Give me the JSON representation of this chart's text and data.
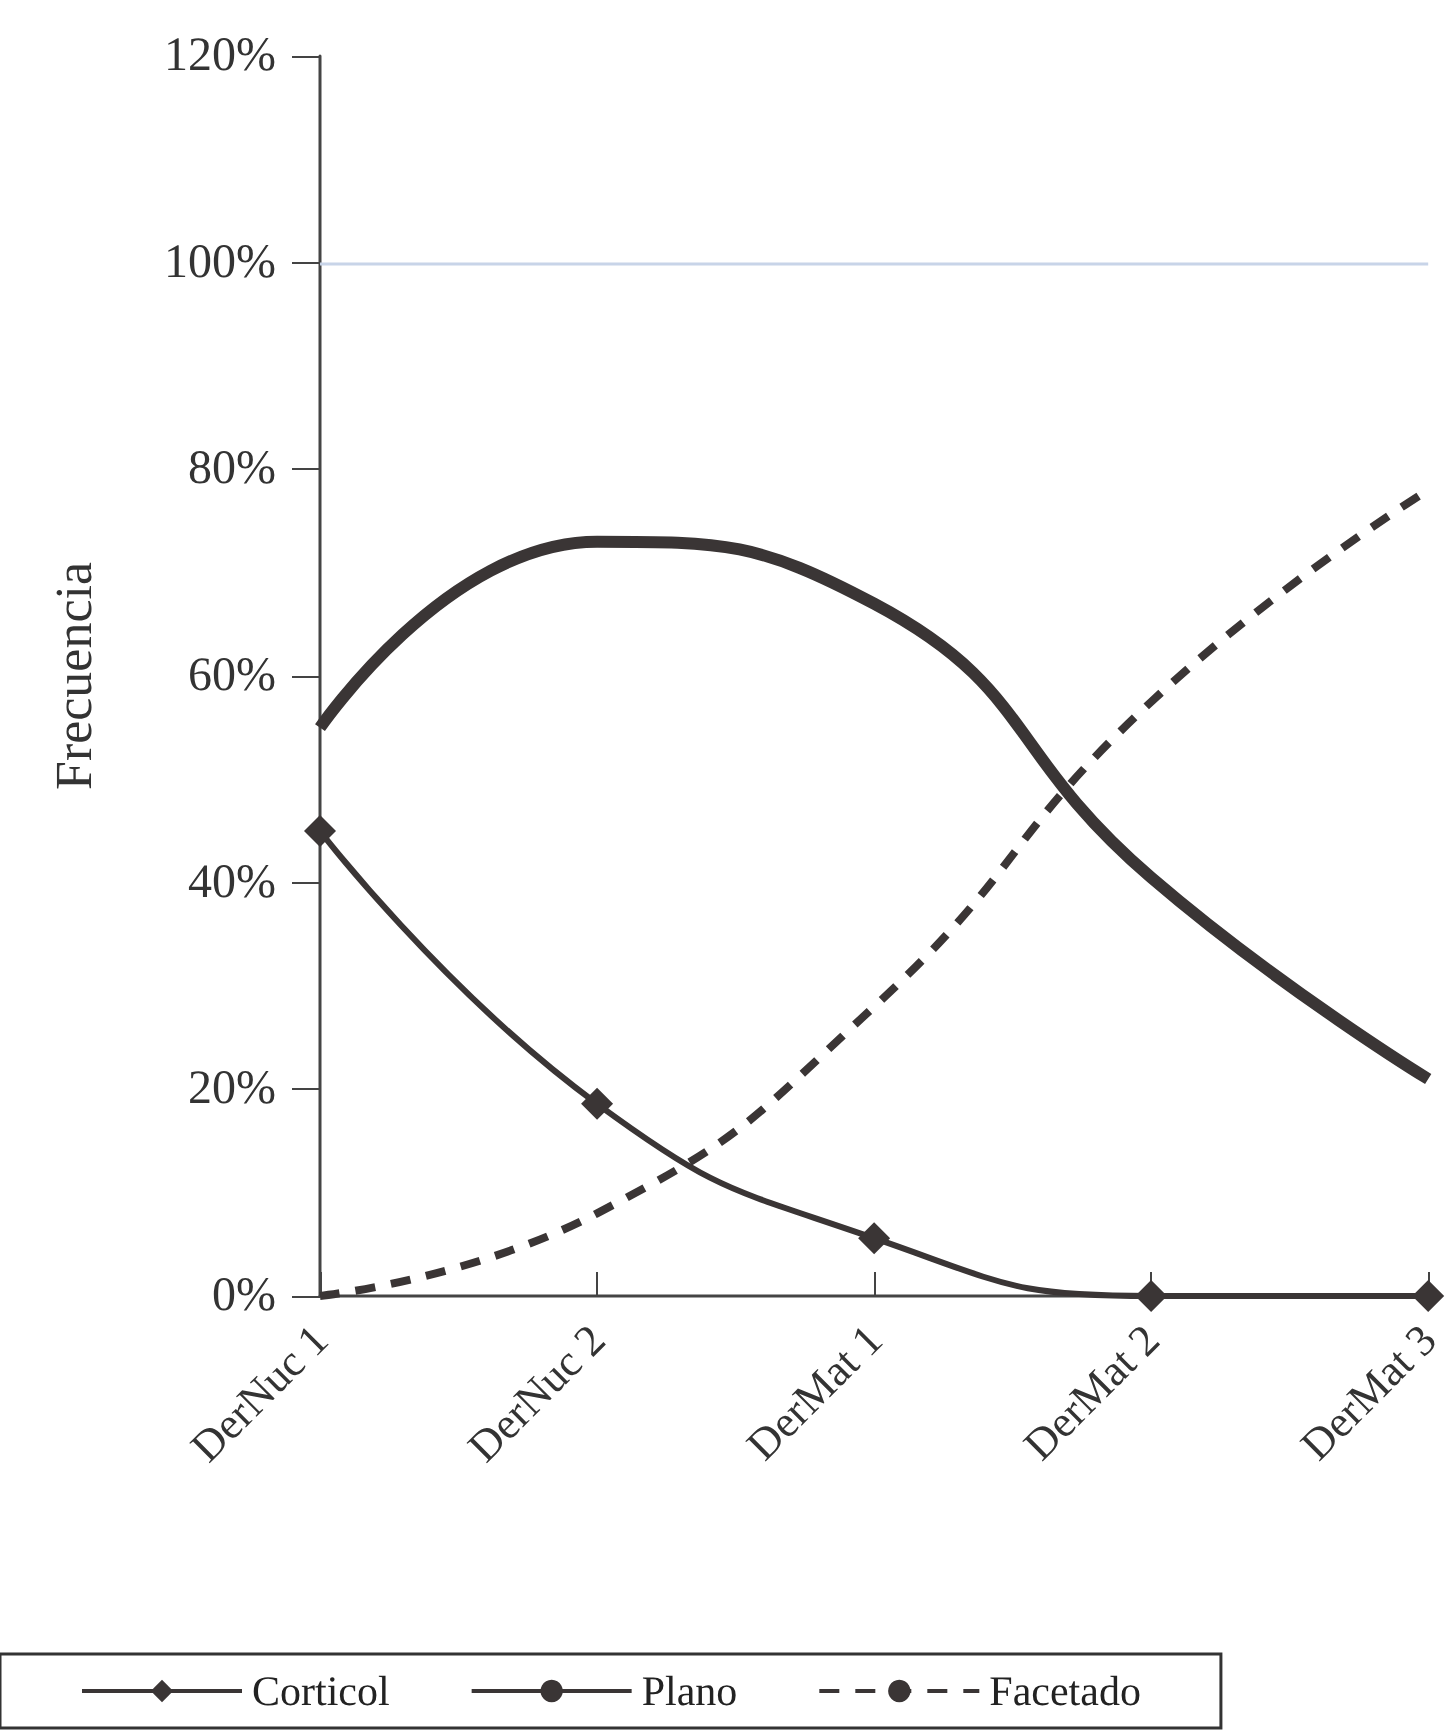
{
  "chart_data": {
    "type": "line",
    "ylabel": "Frecuencia",
    "categories": [
      "DerNuc 1",
      "DerNuc 2",
      "DerMat 1",
      "DerMat 2",
      "DerMat 3"
    ],
    "ylim": [
      0,
      120
    ],
    "yticks": [
      {
        "value": 0,
        "label": "0%"
      },
      {
        "value": 20,
        "label": "20%"
      },
      {
        "value": 40,
        "label": "40%"
      },
      {
        "value": 60,
        "label": "60%"
      },
      {
        "value": 80,
        "label": "80%"
      },
      {
        "value": 100,
        "label": "100%"
      },
      {
        "value": 120,
        "label": "120%"
      }
    ],
    "grid": false,
    "legend": "bottom",
    "ref_lines": [
      {
        "axis": "y",
        "value": 100,
        "color": "#c8d4e8"
      }
    ],
    "series": [
      {
        "name": "Corticol",
        "color": "#3a3535",
        "values": [
          45,
          18.6,
          5.6,
          0,
          0
        ],
        "marker": "diamond",
        "line_style": "solid"
      },
      {
        "name": "Plano",
        "color": "#3a3535",
        "values": [
          55,
          73,
          67,
          40.5,
          21
        ],
        "marker": "none",
        "line_style": "solid"
      },
      {
        "name": "Facetado",
        "color": "#3a3535",
        "values": [
          0,
          8,
          28,
          57.5,
          78
        ],
        "marker": "none",
        "line_style": "dashed"
      }
    ]
  }
}
